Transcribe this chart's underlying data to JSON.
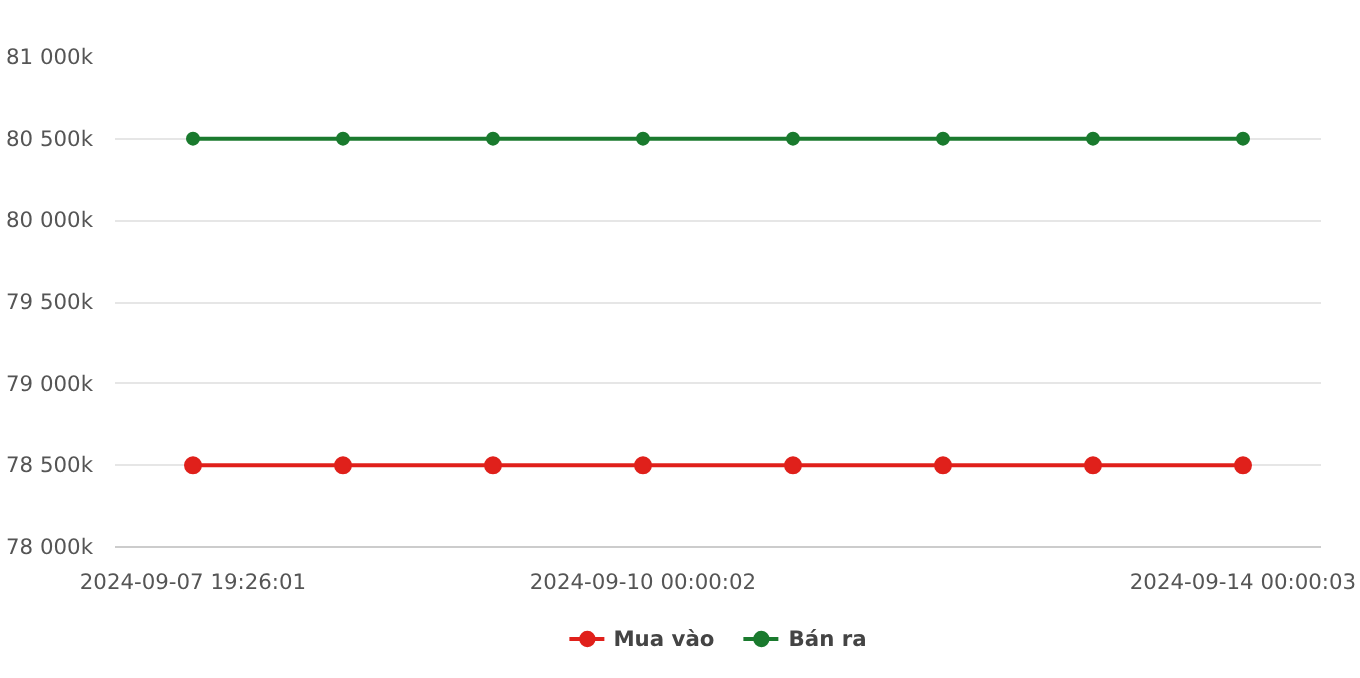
{
  "chart_data": {
    "type": "line",
    "categories": [
      "2024-09-07 19:26:01",
      null,
      null,
      "2024-09-10 00:00:02",
      null,
      null,
      null,
      "2024-09-14 00:00:03"
    ],
    "series": [
      {
        "name": "Mua vào",
        "color": "#e0201b",
        "values": [
          78500,
          78500,
          78500,
          78500,
          78500,
          78500,
          78500,
          78500
        ]
      },
      {
        "name": "Bán ra",
        "color": "#1a7a2e",
        "values": [
          80500,
          80500,
          80500,
          80500,
          80500,
          80500,
          80500,
          80500
        ]
      }
    ],
    "ylim": [
      78000,
      81000
    ],
    "yticks": [
      {
        "value": 78000,
        "label": "78 000k"
      },
      {
        "value": 78500,
        "label": "78 500k"
      },
      {
        "value": 79000,
        "label": "79 000k"
      },
      {
        "value": 79500,
        "label": "79 500k"
      },
      {
        "value": 80000,
        "label": "80 000k"
      },
      {
        "value": 80500,
        "label": "80 500k"
      },
      {
        "value": 81000,
        "label": "81 000k"
      }
    ],
    "grid": "y",
    "legend": "bottom",
    "marker": "circle",
    "line_style": "solid"
  }
}
